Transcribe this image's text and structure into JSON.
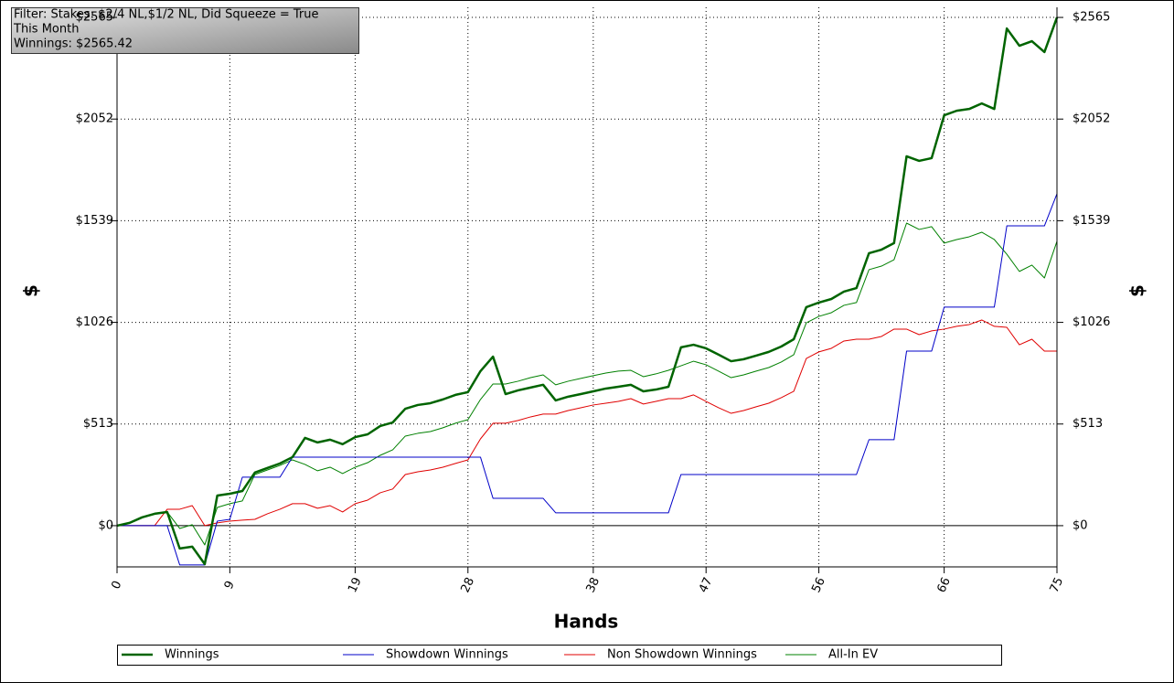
{
  "chart_data": {
    "type": "line",
    "annotation_lines": [
      "Filter: Stakes: $2/4 NL,$1/2 NL, Did Squeeze = True",
      "This Month",
      "Winnings: $2565.42"
    ],
    "x_label": "Hands",
    "y_label": "$",
    "x": [
      0,
      1,
      2,
      3,
      4,
      5,
      6,
      7,
      8,
      9,
      10,
      11,
      12,
      13,
      14,
      15,
      16,
      17,
      18,
      19,
      20,
      21,
      22,
      23,
      24,
      25,
      26,
      27,
      28,
      29,
      30,
      31,
      32,
      33,
      34,
      35,
      36,
      37,
      38,
      39,
      40,
      41,
      42,
      43,
      44,
      45,
      46,
      47,
      48,
      49,
      50,
      51,
      52,
      53,
      54,
      55,
      56,
      57,
      58,
      59,
      60,
      61,
      62,
      63,
      64,
      65,
      66,
      67,
      68,
      69,
      70,
      71,
      72,
      73,
      74,
      75
    ],
    "xlim": [
      0,
      75
    ],
    "xticks": [
      0,
      9,
      19,
      28,
      38,
      47,
      56,
      66,
      75
    ],
    "ylim": [
      -208,
      2616
    ],
    "yticks": [
      {
        "value": 0,
        "label": "$0"
      },
      {
        "value": 513,
        "label": "$513"
      },
      {
        "value": 1026,
        "label": "$1026"
      },
      {
        "value": 1539,
        "label": "$1539"
      },
      {
        "value": 2052,
        "label": "$2052"
      },
      {
        "value": 2565,
        "label": "$2565"
      }
    ],
    "grid": true,
    "legend": "bottom",
    "series": [
      {
        "name": "Winnings",
        "color": "#006400",
        "width": 2.5,
        "values": [
          0,
          14,
          42,
          60,
          69,
          -115,
          -106,
          -194,
          152,
          161,
          175,
          268,
          291,
          314,
          346,
          443,
          420,
          434,
          411,
          447,
          461,
          503,
          521,
          590,
          609,
          618,
          637,
          660,
          674,
          780,
          853,
          664,
          683,
          697,
          711,
          632,
          651,
          664,
          678,
          692,
          701,
          711,
          678,
          687,
          701,
          900,
          913,
          895,
          863,
          830,
          840,
          858,
          877,
          904,
          941,
          1103,
          1126,
          1144,
          1181,
          1199,
          1375,
          1393,
          1426,
          1864,
          1841,
          1855,
          2071,
          2094,
          2103,
          2131,
          2103,
          2509,
          2422,
          2445,
          2390,
          2565
        ]
      },
      {
        "name": "Showdown Winnings",
        "color": "#0000c8",
        "width": 1,
        "values": [
          0,
          0,
          0,
          0,
          0,
          -198,
          -198,
          -198,
          23,
          32,
          245,
          245,
          245,
          245,
          346,
          346,
          346,
          346,
          346,
          346,
          346,
          346,
          346,
          346,
          346,
          346,
          346,
          346,
          346,
          346,
          138,
          138,
          138,
          138,
          138,
          65,
          65,
          65,
          65,
          65,
          65,
          65,
          65,
          65,
          65,
          258,
          258,
          258,
          258,
          258,
          258,
          258,
          258,
          258,
          258,
          258,
          258,
          258,
          258,
          258,
          434,
          434,
          434,
          881,
          881,
          881,
          1103,
          1103,
          1103,
          1103,
          1103,
          1513,
          1513,
          1513,
          1513,
          1675
        ]
      },
      {
        "name": "Non Showdown Winnings",
        "color": "#e00000",
        "width": 1,
        "values": [
          0,
          0,
          0,
          0,
          83,
          83,
          101,
          0,
          14,
          23,
          28,
          32,
          60,
          83,
          111,
          111,
          88,
          101,
          69,
          111,
          129,
          166,
          185,
          258,
          272,
          281,
          295,
          314,
          332,
          438,
          517,
          517,
          531,
          549,
          563,
          563,
          581,
          595,
          609,
          618,
          627,
          641,
          614,
          627,
          641,
          641,
          660,
          627,
          595,
          567,
          581,
          600,
          618,
          646,
          678,
          844,
          877,
          895,
          932,
          941,
          941,
          955,
          992,
          992,
          964,
          983,
          992,
          1006,
          1015,
          1038,
          1006,
          1001,
          913,
          941,
          881,
          881
        ]
      },
      {
        "name": "All-In EV",
        "color": "#008000",
        "width": 1,
        "values": [
          0,
          14,
          42,
          60,
          69,
          -14,
          5,
          -97,
          92,
          111,
          125,
          258,
          281,
          304,
          332,
          309,
          277,
          295,
          263,
          295,
          318,
          355,
          383,
          452,
          466,
          475,
          494,
          517,
          535,
          637,
          715,
          715,
          729,
          747,
          761,
          711,
          729,
          743,
          757,
          770,
          780,
          784,
          752,
          766,
          784,
          807,
          830,
          812,
          780,
          747,
          761,
          780,
          798,
          826,
          863,
          1024,
          1056,
          1075,
          1112,
          1126,
          1292,
          1310,
          1342,
          1527,
          1495,
          1509,
          1426,
          1444,
          1458,
          1481,
          1444,
          1370,
          1283,
          1315,
          1250,
          1435
        ]
      }
    ]
  }
}
